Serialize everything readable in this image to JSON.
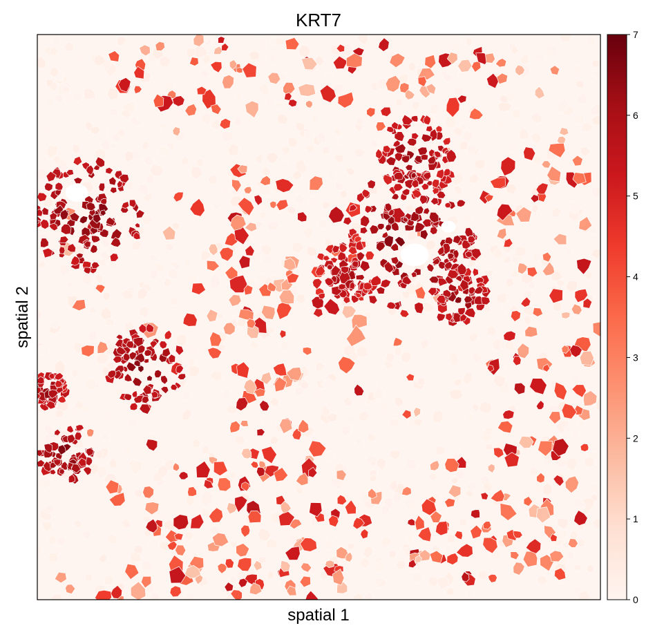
{
  "chart_data": {
    "type": "scatter",
    "title": "KRT7",
    "xlabel": "spatial 1",
    "ylabel": "spatial 2",
    "xticks": [],
    "yticks": [],
    "grid": false,
    "legend": "none",
    "colorbar": {
      "placement": "right",
      "min": 0,
      "max": 7,
      "ticks": [
        0,
        1,
        2,
        3,
        4,
        5,
        6,
        7
      ],
      "tick_labels": [
        "0",
        "1",
        "2",
        "3",
        "4",
        "5",
        "6",
        "7"
      ],
      "colormap": [
        "#fff5f0",
        "#fee0d2",
        "#fcbba1",
        "#fc9272",
        "#fb6a4a",
        "#ef3b2c",
        "#cb181d",
        "#a50f15",
        "#67000d"
      ]
    },
    "background_color": "#fff5f0",
    "xlim": [
      0,
      1
    ],
    "ylim": [
      0,
      1
    ],
    "clusters": [
      {
        "x": 0.09,
        "y": 0.68,
        "r": 0.095,
        "value": 6.6
      },
      {
        "x": 0.19,
        "y": 0.41,
        "r": 0.07,
        "value": 6.5
      },
      {
        "x": 0.02,
        "y": 0.37,
        "r": 0.03,
        "value": 6.3
      },
      {
        "x": 0.05,
        "y": 0.26,
        "r": 0.05,
        "value": 6.6
      },
      {
        "x": 0.66,
        "y": 0.63,
        "r": 0.12,
        "value": 6.5
      },
      {
        "x": 0.67,
        "y": 0.78,
        "r": 0.07,
        "value": 6.3
      },
      {
        "x": 0.55,
        "y": 0.58,
        "r": 0.06,
        "value": 6.0
      },
      {
        "x": 0.75,
        "y": 0.54,
        "r": 0.05,
        "value": 6.4
      }
    ],
    "holes": [
      {
        "x": 0.07,
        "y": 0.72,
        "r": 0.02
      },
      {
        "x": 0.67,
        "y": 0.61,
        "r": 0.025
      },
      {
        "x": 0.73,
        "y": 0.66,
        "r": 0.013
      }
    ],
    "scatter_regions": [
      {
        "x": 0.5,
        "y": 0.93,
        "rx": 0.45,
        "ry": 0.07,
        "density": 0.55
      },
      {
        "x": 0.4,
        "y": 0.5,
        "rx": 0.1,
        "ry": 0.3,
        "density": 0.55
      },
      {
        "x": 0.4,
        "y": 0.15,
        "rx": 0.22,
        "ry": 0.12,
        "density": 0.55
      },
      {
        "x": 0.9,
        "y": 0.45,
        "rx": 0.1,
        "ry": 0.45,
        "density": 0.5
      },
      {
        "x": 0.35,
        "y": 0.03,
        "rx": 0.33,
        "ry": 0.04,
        "density": 0.6
      },
      {
        "x": 0.8,
        "y": 0.15,
        "rx": 0.17,
        "ry": 0.12,
        "density": 0.55
      },
      {
        "x": 0.5,
        "y": 0.5,
        "rx": 0.5,
        "ry": 0.5,
        "density": 0.12
      }
    ]
  }
}
